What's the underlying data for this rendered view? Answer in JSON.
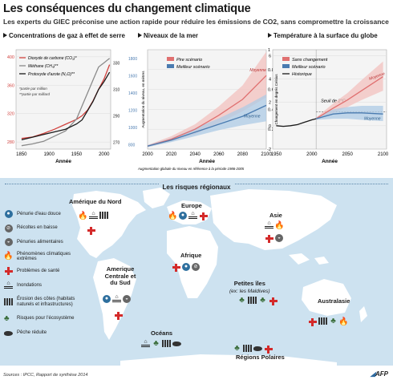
{
  "title": "Les conséquences du changement climatique",
  "subtitle": "Les experts du GIEC préconise une action rapide pour réduire les émissions de CO2, sans compromettre la croissance",
  "colors": {
    "co2": "#d1433f",
    "methane": "#8a8a8a",
    "n2o": "#1a1a1a",
    "pire": "#e07070",
    "meilleur": "#4a7bb0",
    "sea_blue": "#cde2f0",
    "land": "#ffffff",
    "accent_red": "#d42a2a"
  },
  "chart_data": [
    {
      "id": "gaz",
      "type": "line",
      "title": "Concentrations de gaz à effet de serre",
      "xlabel": "Année",
      "x_ticks": [
        1850,
        1900,
        1950,
        2000
      ],
      "xlim": [
        1840,
        2012
      ],
      "left_axis": {
        "ticks": [
          280,
          320,
          360,
          400
        ],
        "ylim": [
          270,
          410
        ]
      },
      "right_axis_outer": {
        "ticks": [
          800,
          1000,
          1200,
          1400,
          1600,
          1800
        ]
      },
      "right_axis_inner": {
        "ticks": [
          270,
          290,
          310,
          330
        ]
      },
      "notes": [
        "*partie par million",
        "**partie par milliard"
      ],
      "series": [
        {
          "name": "Dioxyde de carbone (CO₂)*",
          "key": "co2",
          "x": [
            1850,
            1870,
            1890,
            1910,
            1930,
            1950,
            1960,
            1970,
            1980,
            1990,
            2000,
            2010
          ],
          "y": [
            285,
            287,
            292,
            298,
            305,
            312,
            317,
            325,
            338,
            354,
            369,
            389
          ]
        },
        {
          "name": "Méthane (CH₄)**",
          "key": "methane",
          "x": [
            1850,
            1870,
            1890,
            1910,
            1930,
            1950,
            1960,
            1970,
            1980,
            1990,
            2000,
            2010
          ],
          "y": [
            790,
            810,
            840,
            900,
            960,
            1100,
            1250,
            1400,
            1550,
            1700,
            1750,
            1800
          ]
        },
        {
          "name": "Protoxyde d'azote (N₂O)**",
          "key": "n2o",
          "x": [
            1850,
            1870,
            1890,
            1910,
            1930,
            1950,
            1960,
            1970,
            1980,
            1990,
            2000,
            2010
          ],
          "y": [
            272,
            274,
            276,
            278,
            280,
            284,
            287,
            294,
            301,
            310,
            316,
            323
          ]
        }
      ]
    },
    {
      "id": "mer",
      "type": "area",
      "title": "Niveaux de la mer",
      "xlabel": "Année",
      "ylabel": "Augmentation du niveau, en mètres",
      "x_ticks": [
        2000,
        2020,
        2040,
        2060,
        2080,
        2100
      ],
      "xlim": [
        2000,
        2100
      ],
      "y_ticks": [
        0.2,
        0.4,
        0.6,
        0.8,
        1
      ],
      "ylim": [
        0,
        1
      ],
      "note": "Augmentation globale du niveau en référence à la période 1986-2005",
      "annotation": "Moyenne",
      "series": [
        {
          "name": "Pire scénario",
          "key": "pire",
          "x": [
            2000,
            2020,
            2040,
            2060,
            2080,
            2100
          ],
          "y": [
            0.03,
            0.1,
            0.2,
            0.34,
            0.5,
            0.74
          ],
          "low": [
            0.02,
            0.08,
            0.15,
            0.26,
            0.38,
            0.52
          ],
          "high": [
            0.04,
            0.13,
            0.25,
            0.43,
            0.64,
            0.98
          ]
        },
        {
          "name": "Meilleur scénario",
          "key": "meilleur",
          "x": [
            2000,
            2020,
            2040,
            2060,
            2080,
            2100
          ],
          "y": [
            0.03,
            0.09,
            0.17,
            0.25,
            0.33,
            0.44
          ],
          "low": [
            0.02,
            0.07,
            0.13,
            0.19,
            0.24,
            0.28
          ],
          "high": [
            0.04,
            0.11,
            0.21,
            0.31,
            0.42,
            0.55
          ]
        }
      ]
    },
    {
      "id": "temp",
      "type": "area",
      "title": "Température à la surface du globe",
      "xlabel": "Année",
      "ylabel": "Changement en degrés Celsius",
      "x_ticks": [
        1950,
        2000,
        2050,
        2100
      ],
      "xlim": [
        1945,
        2105
      ],
      "y_ticks": [
        -2,
        0,
        2,
        4,
        6
      ],
      "ylim": [
        -2,
        6.5
      ],
      "threshold": {
        "value": 1.2,
        "label": "Seuil de 2°C"
      },
      "annotation": "Moyenne",
      "series": [
        {
          "name": "Sans changement",
          "key": "pire",
          "x": [
            2006,
            2030,
            2050,
            2070,
            2100
          ],
          "y": [
            0.6,
            1.5,
            2.2,
            3.0,
            4.2
          ],
          "low": [
            0.5,
            1.1,
            1.6,
            2.2,
            3.0
          ],
          "high": [
            0.7,
            1.9,
            2.8,
            3.9,
            5.5
          ]
        },
        {
          "name": "Meilleur scénario",
          "key": "meilleur",
          "x": [
            2006,
            2030,
            2050,
            2070,
            2100
          ],
          "y": [
            0.6,
            1.0,
            1.1,
            1.1,
            1.0
          ],
          "low": [
            0.5,
            0.6,
            0.6,
            0.5,
            0.4
          ],
          "high": [
            0.7,
            1.4,
            1.6,
            1.7,
            1.7
          ]
        },
        {
          "name": "Historique",
          "key": "n2o",
          "x": [
            1950,
            1960,
            1970,
            1980,
            1990,
            2000,
            2006
          ],
          "y": [
            0.0,
            -0.05,
            0.0,
            0.1,
            0.3,
            0.5,
            0.6
          ]
        }
      ]
    }
  ],
  "map": {
    "header": "Les risques régionaux",
    "legend": [
      {
        "label": "Pénurie d'eau douce",
        "icon": "water-drop-icon"
      },
      {
        "label": "Récoltes en baisse",
        "icon": "crops-icon"
      },
      {
        "label": "Pénuries alimentaires",
        "icon": "food-bowl-icon"
      },
      {
        "label": "Phénomènes climatiques extrêmes",
        "icon": "fire-icon"
      },
      {
        "label": "Problèmes de santé",
        "icon": "health-cross-icon"
      },
      {
        "label": "Inondations",
        "icon": "flood-icon"
      },
      {
        "label": "Érosion des côtes (habitats naturels et infrastructures)",
        "icon": "coastal-erosion-icon"
      },
      {
        "label": "Risques pour l'écosystème",
        "icon": "ecosystem-icon"
      },
      {
        "label": "Pêche réduite",
        "icon": "fish-icon"
      }
    ],
    "regions": {
      "amerique_nord": "Amérique du Nord",
      "europe": "Europe",
      "asie": "Asie",
      "afrique": "Afrique",
      "amerique_sud": "Amerique Centrale et du Sud",
      "petites_iles": "Petites îles",
      "petites_iles_sub": "(ex: les Maldives)",
      "australasie": "Australasie",
      "oceans": "Océans",
      "polaires": "Régions Polaires"
    }
  },
  "footer": {
    "sources": "Sources : IPCC, Rapport de synthèse 2014",
    "logo": "AFP"
  }
}
